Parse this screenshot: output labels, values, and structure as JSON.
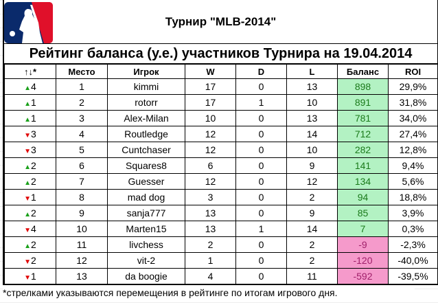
{
  "title": "Турнир \"MLB-2014\"",
  "subtitle": "Рейтинг баланса (у.е.) участников Турнира на 19.04.2014",
  "columns": [
    "↑↓*",
    "Место",
    "Игрок",
    "W",
    "D",
    "L",
    "Баланс",
    "ROI"
  ],
  "rows": [
    {
      "dir": "up",
      "move": "4",
      "place": "1",
      "player": "kimmi",
      "w": "17",
      "d": "0",
      "l": "13",
      "balance": "898",
      "roi": "29,9%"
    },
    {
      "dir": "up",
      "move": "1",
      "place": "2",
      "player": "rotorr",
      "w": "17",
      "d": "1",
      "l": "10",
      "balance": "891",
      "roi": "31,8%"
    },
    {
      "dir": "up",
      "move": "1",
      "place": "3",
      "player": "Alex-Milan",
      "w": "10",
      "d": "0",
      "l": "13",
      "balance": "781",
      "roi": "34,0%"
    },
    {
      "dir": "down",
      "move": "3",
      "place": "4",
      "player": "Routledge",
      "w": "12",
      "d": "0",
      "l": "14",
      "balance": "712",
      "roi": "27,4%"
    },
    {
      "dir": "down",
      "move": "3",
      "place": "5",
      "player": "Cuntchaser",
      "w": "12",
      "d": "0",
      "l": "10",
      "balance": "282",
      "roi": "12,8%"
    },
    {
      "dir": "up",
      "move": "2",
      "place": "6",
      "player": "Squares8",
      "w": "6",
      "d": "0",
      "l": "9",
      "balance": "141",
      "roi": "9,4%"
    },
    {
      "dir": "up",
      "move": "2",
      "place": "7",
      "player": "Guesser",
      "w": "12",
      "d": "0",
      "l": "12",
      "balance": "134",
      "roi": "5,6%"
    },
    {
      "dir": "down",
      "move": "1",
      "place": "8",
      "player": "mad dog",
      "w": "3",
      "d": "0",
      "l": "2",
      "balance": "94",
      "roi": "18,8%"
    },
    {
      "dir": "up",
      "move": "2",
      "place": "9",
      "player": "sanja777",
      "w": "13",
      "d": "0",
      "l": "9",
      "balance": "85",
      "roi": "3,9%"
    },
    {
      "dir": "down",
      "move": "4",
      "place": "10",
      "player": "Marten15",
      "w": "13",
      "d": "1",
      "l": "14",
      "balance": "7",
      "roi": "0,3%"
    },
    {
      "dir": "up",
      "move": "2",
      "place": "11",
      "player": "livchess",
      "w": "2",
      "d": "0",
      "l": "2",
      "balance": "-9",
      "roi": "-2,3%"
    },
    {
      "dir": "down",
      "move": "2",
      "place": "12",
      "player": "vit-2",
      "w": "1",
      "d": "0",
      "l": "2",
      "balance": "-120",
      "roi": "-40,0%"
    },
    {
      "dir": "down",
      "move": "1",
      "place": "13",
      "player": "da boogie",
      "w": "4",
      "d": "0",
      "l": "11",
      "balance": "-592",
      "roi": "-39,5%"
    }
  ],
  "footnote": "*стрелками указываются перемещения в рейтинге по итогам игрового дня.",
  "colors": {
    "positive_bg": "#b3f2c3",
    "negative_bg": "#f59acb",
    "up": "#1aa01a",
    "down": "#e00000"
  }
}
